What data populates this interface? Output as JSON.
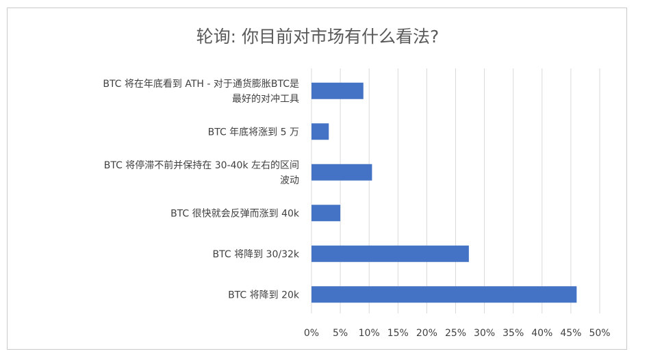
{
  "chart_data": {
    "type": "bar",
    "orientation": "horizontal",
    "title": "轮询: 你目前对市场有什么看法?",
    "categories": [
      [
        "BTC 将在年底看到 ATH - 对于通货膨胀BTC是",
        "最好的对冲工具"
      ],
      [
        "BTC 年底将涨到 5 万"
      ],
      [
        "BTC 将停滞不前并保持在 30-40k 左右的区间",
        "波动"
      ],
      [
        "BTC 很快就会反弹而涨到 40k"
      ],
      [
        "BTC 将降到 30/32k"
      ],
      [
        "BTC 将降到 20k"
      ]
    ],
    "values": [
      9,
      3,
      10.5,
      5,
      27.3,
      46
    ],
    "xlim": [
      0,
      50
    ],
    "xticks": [
      0,
      5,
      10,
      15,
      20,
      25,
      30,
      35,
      40,
      45,
      50
    ],
    "tick_format": "percent",
    "grid": "vertical",
    "legend": "none",
    "bar_color": "#4472c4",
    "grid_color": "#d9d9d9"
  }
}
